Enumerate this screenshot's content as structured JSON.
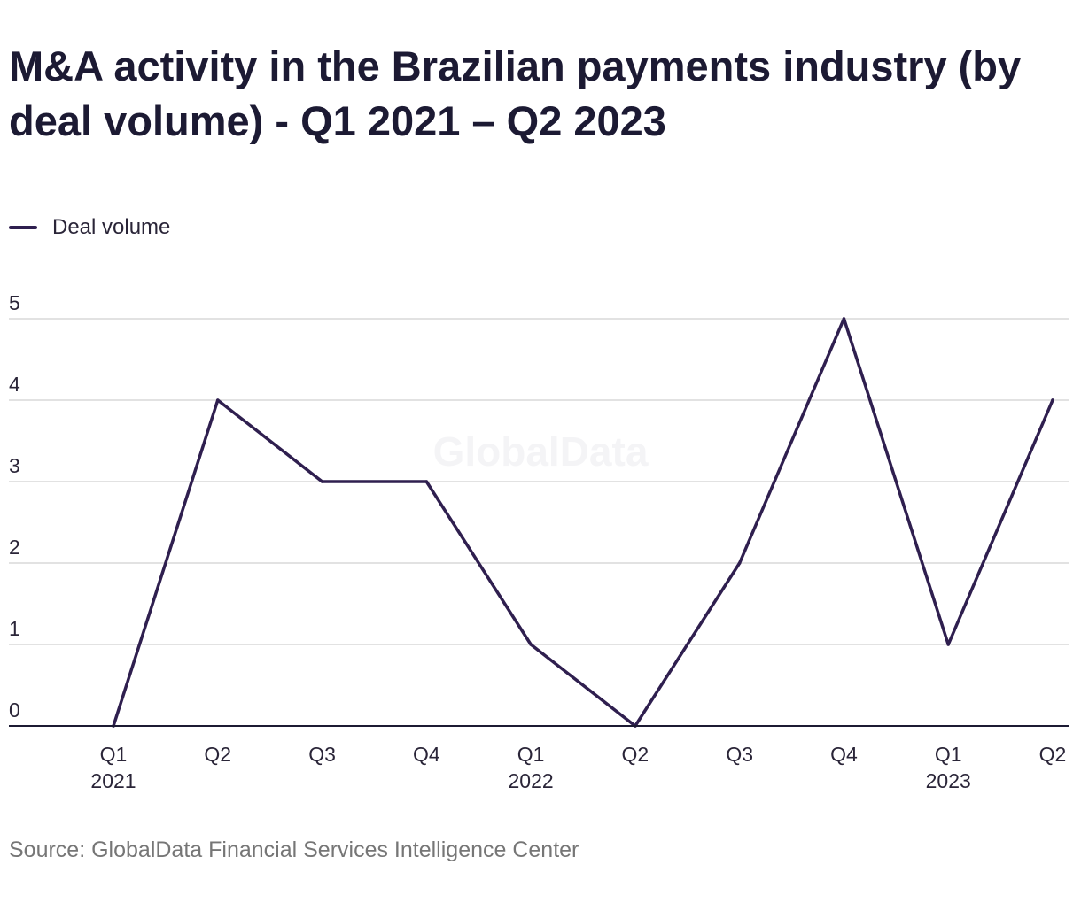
{
  "chart_data": {
    "type": "line",
    "title": "M&A activity in the Brazilian payments industry (by deal volume) - Q1 2021 – Q2 2023",
    "categories": [
      {
        "quarter": "Q1",
        "year": "2021"
      },
      {
        "quarter": "Q2",
        "year": ""
      },
      {
        "quarter": "Q3",
        "year": ""
      },
      {
        "quarter": "Q4",
        "year": ""
      },
      {
        "quarter": "Q1",
        "year": "2022"
      },
      {
        "quarter": "Q2",
        "year": ""
      },
      {
        "quarter": "Q3",
        "year": ""
      },
      {
        "quarter": "Q4",
        "year": ""
      },
      {
        "quarter": "Q1",
        "year": "2023"
      },
      {
        "quarter": "Q2",
        "year": ""
      }
    ],
    "series": [
      {
        "name": "Deal volume",
        "color": "#2f1f4f",
        "values": [
          0,
          4,
          3,
          3,
          1,
          0,
          2,
          5,
          1,
          4
        ]
      }
    ],
    "yticks": [
      0,
      1,
      2,
      3,
      4,
      5
    ],
    "ylim": [
      0,
      5
    ],
    "xlabel": "",
    "ylabel": "",
    "legend_position": "top-left",
    "grid": true,
    "watermark": "GlobalData"
  },
  "source": "Source: GlobalData Financial Services Intelligence Center"
}
